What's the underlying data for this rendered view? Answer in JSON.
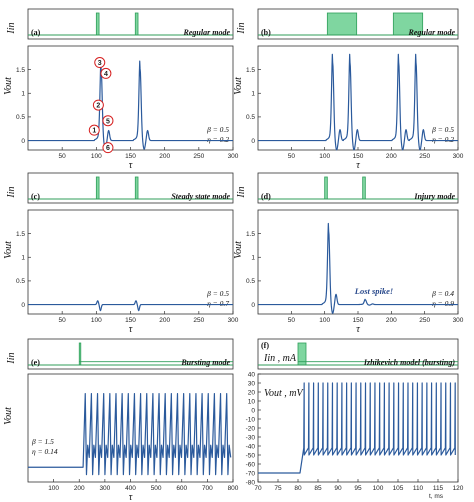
{
  "chart_data": [
    {
      "type": "line",
      "panel_label": "(a)",
      "mode": "Regular mode",
      "params": [
        "β = 0.5",
        "η = 0.2"
      ],
      "input": {
        "label": "Iin",
        "kind": "pulses",
        "pulses": [
          [
            100,
            104
          ],
          [
            157,
            161
          ]
        ]
      },
      "output": {
        "ylabel": "Vout",
        "xlabel": "τ",
        "xlim": [
          0,
          300
        ],
        "ylim": [
          -0.2,
          2.0
        ],
        "xticks": [
          50,
          100,
          150,
          200,
          250,
          300
        ],
        "yticks": [
          0.0,
          0.5,
          1.0,
          1.5
        ],
        "series": [
          {
            "color": "#2b5a9c",
            "shape": "spikes",
            "spikes": [
              {
                "t": 107,
                "amp": 1.52
              },
              {
                "t": 164,
                "amp": 1.52
              }
            ],
            "baseline": 0.0
          }
        ],
        "markers": [
          {
            "label": "1",
            "x": 97,
            "y": 0.22
          },
          {
            "label": "2",
            "x": 103,
            "y": 0.75
          },
          {
            "label": "3",
            "x": 105,
            "y": 1.65
          },
          {
            "label": "4",
            "x": 114,
            "y": 1.42
          },
          {
            "label": "5",
            "x": 117,
            "y": 0.42
          },
          {
            "label": "6",
            "x": 117,
            "y": -0.15
          }
        ]
      }
    },
    {
      "type": "line",
      "panel_label": "(b)",
      "mode": "Regular mode",
      "params": [
        "β = 0.5",
        "η = 0.2"
      ],
      "input": {
        "label": "Iin",
        "kind": "blocks",
        "pulses": [
          [
            104,
            148
          ],
          [
            203,
            247
          ]
        ]
      },
      "output": {
        "ylabel": "Vout",
        "xlabel": "τ",
        "xlim": [
          0,
          300
        ],
        "ylim": [
          -0.2,
          2.0
        ],
        "xticks": [
          50,
          100,
          150,
          200,
          250,
          300
        ],
        "yticks": [
          0.0,
          0.5,
          1.0,
          1.5
        ],
        "series": [
          {
            "color": "#2b5a9c",
            "shape": "spikes",
            "spikes": [
              {
                "t": 112,
                "amp": 1.65
              },
              {
                "t": 138,
                "amp": 1.65
              },
              {
                "t": 211,
                "amp": 1.65
              },
              {
                "t": 237,
                "amp": 1.65
              }
            ],
            "baseline": 0.0
          }
        ]
      }
    },
    {
      "type": "line",
      "panel_label": "(c)",
      "mode": "Steady state mode",
      "params": [
        "β = 0.5",
        "η = 0.7"
      ],
      "input": {
        "label": "Iin",
        "kind": "pulses",
        "pulses": [
          [
            100,
            104
          ],
          [
            157,
            161
          ]
        ]
      },
      "output": {
        "ylabel": "Vout",
        "xlabel": "τ",
        "xlim": [
          0,
          300
        ],
        "ylim": [
          -0.2,
          2.0
        ],
        "xticks": [
          50,
          100,
          150,
          200,
          250,
          300
        ],
        "yticks": [
          0.0,
          0.5,
          1.0,
          1.5
        ],
        "series": [
          {
            "color": "#2b5a9c",
            "shape": "blips",
            "spikes": [
              {
                "t": 104,
                "amp": 0.08
              },
              {
                "t": 160,
                "amp": 0.08
              }
            ],
            "baseline": 0.0
          }
        ]
      }
    },
    {
      "type": "line",
      "panel_label": "(d)",
      "mode": "Injury mode",
      "params": [
        "β = 0.4",
        "η = 0.9"
      ],
      "annotation": "Lost spike!",
      "input": {
        "label": "Iin",
        "kind": "pulses",
        "pulses": [
          [
            100,
            104
          ],
          [
            157,
            161
          ]
        ]
      },
      "output": {
        "ylabel": "Vout",
        "xlabel": "τ",
        "xlim": [
          0,
          300
        ],
        "ylim": [
          -0.2,
          2.0
        ],
        "xticks": [
          50,
          100,
          150,
          200,
          250,
          300
        ],
        "yticks": [
          0.0,
          0.5,
          1.0,
          1.5
        ],
        "series": [
          {
            "color": "#2b5a9c",
            "shape": "spikes",
            "spikes": [
              {
                "t": 106,
                "amp": 1.55
              },
              {
                "t": 161,
                "amp": 0.1
              }
            ],
            "baseline": 0.0
          }
        ]
      }
    },
    {
      "type": "line",
      "panel_label": "(e)",
      "mode": "Bursting mode",
      "params": [
        "β = 1.5",
        "η = 0.14"
      ],
      "input": {
        "label": "Iin",
        "kind": "step",
        "pulses": [
          [
            200,
            800
          ]
        ],
        "pulse_width": 6
      },
      "output": {
        "ylabel": "Vout",
        "xlabel": "τ",
        "xlim": [
          0,
          800
        ],
        "ylim": [
          -0.3,
          1.9
        ],
        "xticks": [
          100,
          200,
          300,
          400,
          500,
          600,
          700,
          800
        ],
        "yticks": [],
        "series": [
          {
            "color": "#2b5a9c",
            "shape": "train",
            "start": 215,
            "period": 24,
            "count": 24,
            "amp": 1.5,
            "trough": 0.2,
            "baseline": 0.0
          }
        ]
      }
    },
    {
      "type": "line",
      "panel_label": "(f)",
      "mode": "Izhikevich model (bursting)",
      "input": {
        "label": "Iin , mA",
        "kind": "step",
        "pulses": [
          [
            80,
            120
          ]
        ],
        "pulse_width": 2
      },
      "output": {
        "ylabel": "Vout , mV",
        "xlabel": "t, ms",
        "xlim": [
          70,
          120
        ],
        "ylim": [
          -80,
          40
        ],
        "xticks": [
          70,
          75,
          80,
          85,
          90,
          95,
          100,
          105,
          110,
          115,
          120
        ],
        "yticks": [
          -80,
          -70,
          -60,
          -50,
          -40,
          -30,
          -20,
          -10,
          0,
          10,
          20,
          30,
          40
        ],
        "series": [
          {
            "color": "#2b5a9c",
            "shape": "izh",
            "start": 80.5,
            "period": 1.18,
            "count": 33,
            "amp": 30,
            "reset": -50,
            "baseline": -70
          }
        ]
      }
    }
  ]
}
